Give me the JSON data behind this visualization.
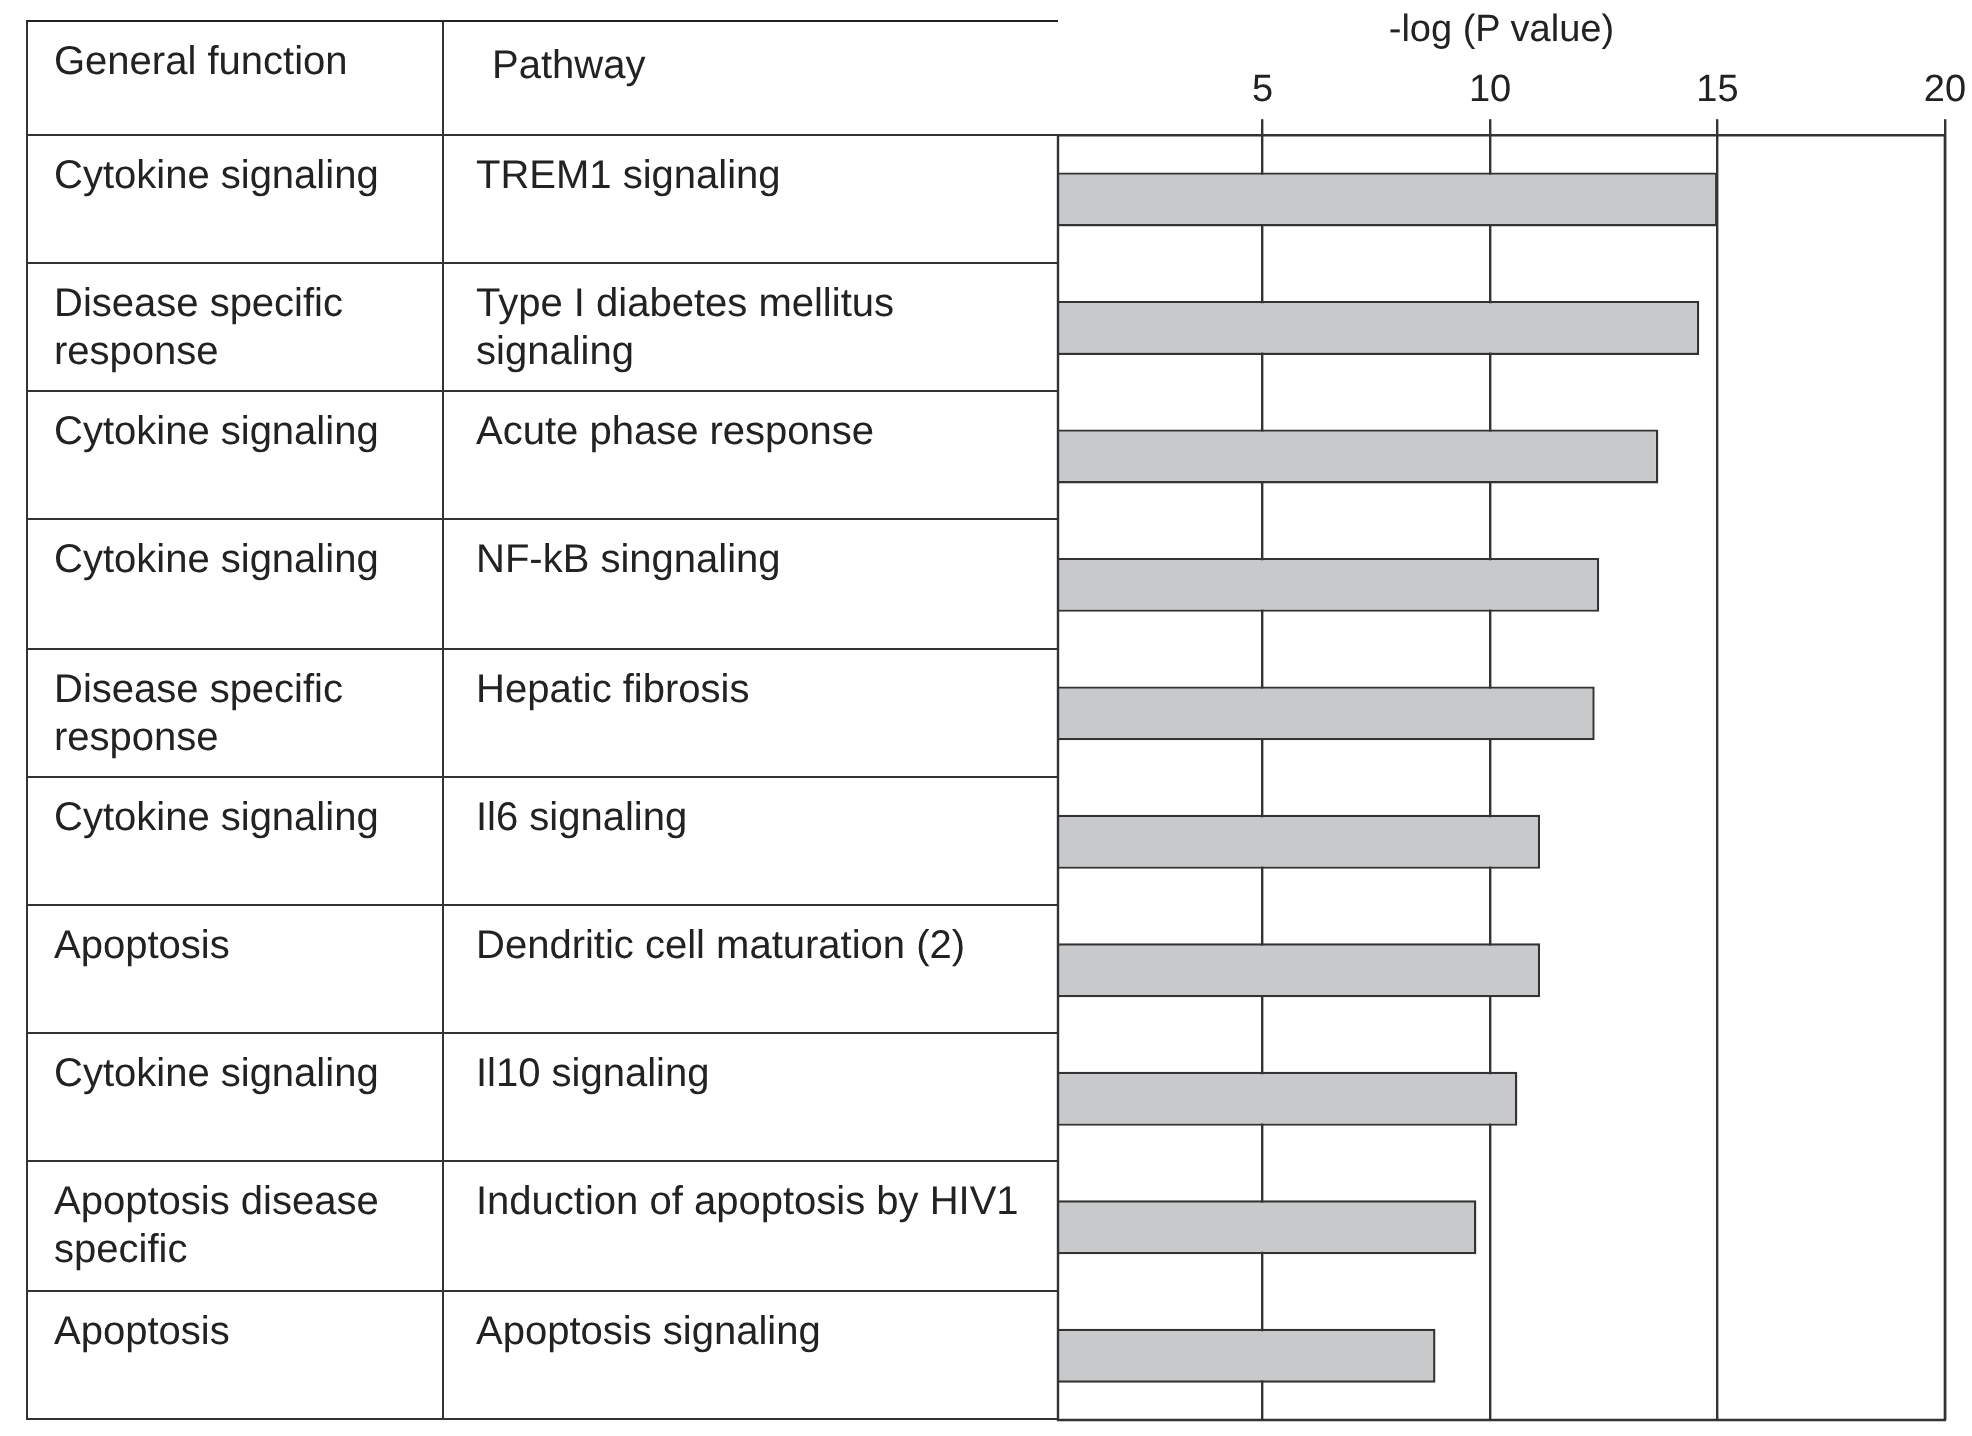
{
  "chart_data": {
    "type": "bar",
    "orientation": "horizontal",
    "xlabel": "-log (P value)",
    "ylabel": "Pathway",
    "categories": [
      "TREM1 signaling",
      "Type I diabetes mellitus signaling",
      "Acute phase response",
      "NF-kB singnaling",
      "Hepatic fibrosis",
      "Il6 signaling",
      "Dendritic cell maturation (2)",
      "Il10 signaling",
      "Induction of apoptosis by HIV1",
      "Apoptosis signaling"
    ],
    "values": [
      15.0,
      14.6,
      13.7,
      12.4,
      12.3,
      11.1,
      11.1,
      10.6,
      9.7,
      8.8
    ],
    "color": "#c8c9cb",
    "xlim": [
      0.5,
      20
    ],
    "xticks": [
      5,
      10,
      15,
      20
    ],
    "grid": "x",
    "tick_labels": "x",
    "annotations": [
      "General function",
      "Cytokine signaling",
      "Disease specific response",
      "Cytokine signaling",
      "Cytokine signaling",
      "Disease specific response",
      "Cytokine signaling",
      "Apoptosis",
      "Cytokine signaling",
      "Apoptosis disease specific",
      "Apoptosis"
    ]
  }
}
